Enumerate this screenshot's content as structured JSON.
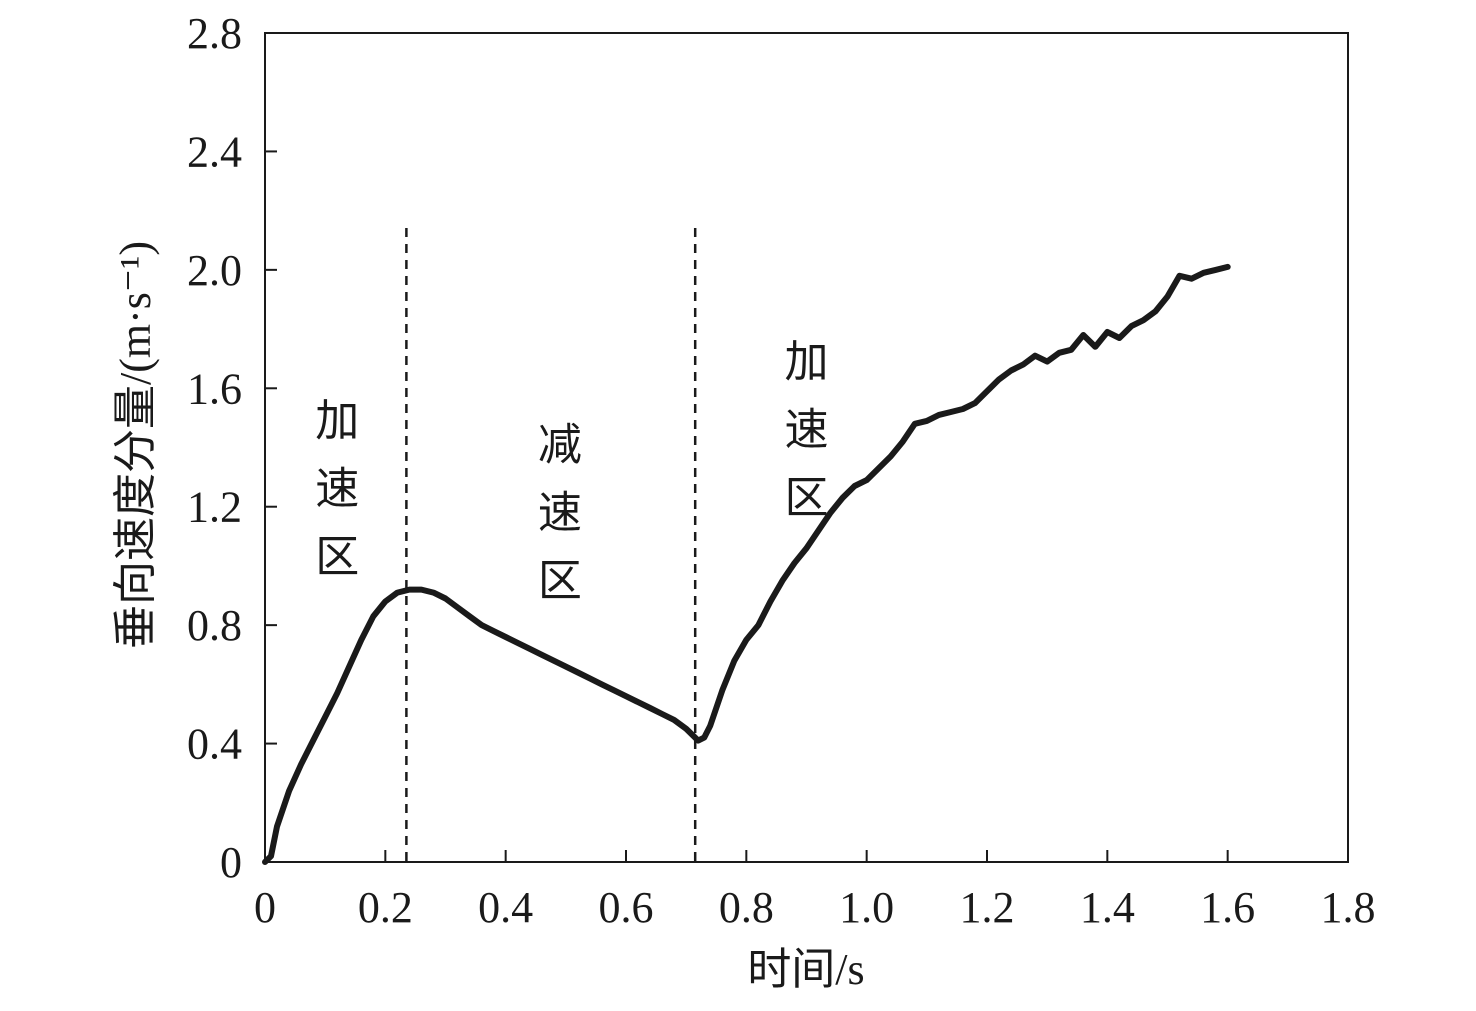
{
  "chart_data": {
    "type": "line",
    "title": "",
    "xlabel": "时间/s",
    "ylabel": "垂向速度分量/(m·s⁻¹)",
    "xlim": [
      0,
      1.8
    ],
    "ylim": [
      0,
      2.8
    ],
    "xticks": [
      0,
      0.2,
      0.4,
      0.6,
      0.8,
      1.0,
      1.2,
      1.4,
      1.6,
      1.8
    ],
    "xtick_labels": [
      "0",
      "0.2",
      "0.4",
      "0.6",
      "0.8",
      "1.0",
      "1.2",
      "1.4",
      "1.6",
      "1.8"
    ],
    "yticks": [
      0,
      0.4,
      0.8,
      1.2,
      1.6,
      2.0,
      2.4,
      2.8
    ],
    "ytick_labels": [
      "0",
      "0.4",
      "0.8",
      "1.2",
      "1.6",
      "2.0",
      "2.4",
      "2.8"
    ],
    "grid": false,
    "line_color": "#1a1a1a",
    "series": [
      {
        "x": [
          0.0,
          0.01,
          0.02,
          0.04,
          0.06,
          0.08,
          0.1,
          0.12,
          0.14,
          0.16,
          0.18,
          0.2,
          0.22,
          0.24,
          0.26,
          0.28,
          0.3,
          0.32,
          0.34,
          0.36,
          0.38,
          0.4,
          0.42,
          0.44,
          0.46,
          0.48,
          0.5,
          0.52,
          0.54,
          0.56,
          0.58,
          0.6,
          0.62,
          0.64,
          0.66,
          0.68,
          0.7,
          0.71,
          0.72,
          0.73,
          0.74,
          0.76,
          0.78,
          0.8,
          0.82,
          0.84,
          0.86,
          0.88,
          0.9,
          0.92,
          0.94,
          0.96,
          0.98,
          1.0,
          1.02,
          1.04,
          1.06,
          1.08,
          1.1,
          1.12,
          1.14,
          1.16,
          1.18,
          1.2,
          1.22,
          1.24,
          1.26,
          1.28,
          1.3,
          1.32,
          1.34,
          1.36,
          1.38,
          1.4,
          1.42,
          1.44,
          1.46,
          1.48,
          1.5,
          1.52,
          1.54,
          1.56,
          1.58,
          1.6
        ],
        "values": [
          0.0,
          0.02,
          0.12,
          0.24,
          0.33,
          0.41,
          0.49,
          0.57,
          0.66,
          0.75,
          0.83,
          0.88,
          0.91,
          0.92,
          0.92,
          0.91,
          0.89,
          0.86,
          0.83,
          0.8,
          0.78,
          0.76,
          0.74,
          0.72,
          0.7,
          0.68,
          0.66,
          0.64,
          0.62,
          0.6,
          0.58,
          0.56,
          0.54,
          0.52,
          0.5,
          0.48,
          0.45,
          0.43,
          0.41,
          0.42,
          0.46,
          0.58,
          0.68,
          0.75,
          0.8,
          0.88,
          0.95,
          1.01,
          1.06,
          1.12,
          1.18,
          1.23,
          1.27,
          1.29,
          1.33,
          1.37,
          1.42,
          1.48,
          1.49,
          1.51,
          1.52,
          1.53,
          1.55,
          1.59,
          1.63,
          1.66,
          1.68,
          1.71,
          1.69,
          1.72,
          1.73,
          1.78,
          1.74,
          1.79,
          1.77,
          1.81,
          1.83,
          1.86,
          1.91,
          1.98,
          1.97,
          1.99,
          2.0,
          2.01
        ]
      }
    ],
    "dividers": [
      0.235,
      0.715
    ],
    "regions": [
      {
        "chars": [
          "加",
          "速",
          "区"
        ],
        "x": 0.12,
        "y_top": 1.44
      },
      {
        "chars": [
          "减",
          "速",
          "区"
        ],
        "x": 0.49,
        "y_top": 1.36
      },
      {
        "chars": [
          "加",
          "速",
          "区"
        ],
        "x": 0.9,
        "y_top": 1.64
      }
    ]
  }
}
